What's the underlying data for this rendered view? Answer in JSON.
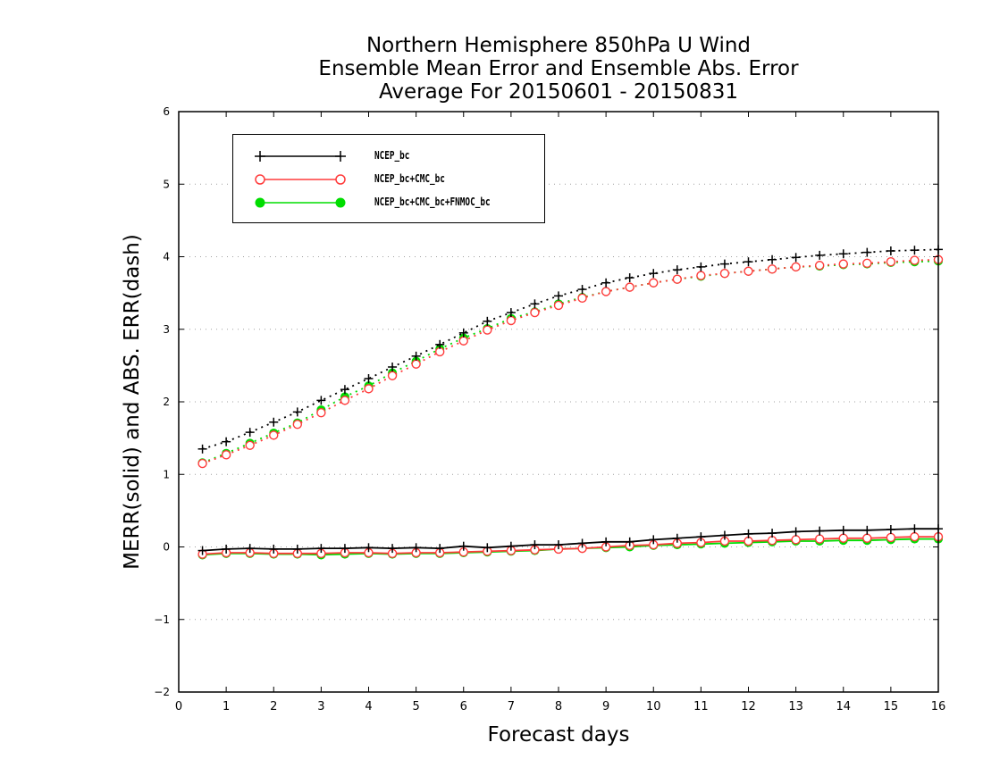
{
  "titles": [
    "Northern Hemisphere 850hPa U Wind",
    "Ensemble Mean Error and Ensemble Abs. Error",
    "Average For 20150601 - 20150831"
  ],
  "chart_data": {
    "type": "line",
    "title": "Northern Hemisphere 850hPa U Wind / Ensemble Mean Error and Ensemble Abs. Error / Average For 20150601 - 20150831",
    "xlabel": "Forecast days",
    "ylabel": "MERR(solid) and ABS. ERR(dash)",
    "xlim": [
      0,
      16
    ],
    "ylim": [
      -2,
      6
    ],
    "xticks": [
      0,
      1,
      2,
      3,
      4,
      5,
      6,
      7,
      8,
      9,
      10,
      11,
      12,
      13,
      14,
      15,
      16
    ],
    "yticks": [
      -2,
      -1,
      0,
      1,
      2,
      3,
      4,
      5,
      6
    ],
    "grid": "horizontal dotted",
    "legend_position": "top-left",
    "x": [
      0.5,
      1,
      1.5,
      2,
      2.5,
      3,
      3.5,
      4,
      4.5,
      5,
      5.5,
      6,
      6.5,
      7,
      7.5,
      8,
      8.5,
      9,
      9.5,
      10,
      10.5,
      11,
      11.5,
      12,
      12.5,
      13,
      13.5,
      14,
      14.5,
      15,
      15.5,
      16
    ],
    "series": [
      {
        "name": "NCEP_bc",
        "color": "#000000",
        "marker": "plus",
        "abs_err": [
          1.35,
          1.45,
          1.58,
          1.72,
          1.86,
          2.02,
          2.17,
          2.32,
          2.48,
          2.63,
          2.79,
          2.95,
          3.11,
          3.23,
          3.35,
          3.46,
          3.55,
          3.64,
          3.71,
          3.77,
          3.82,
          3.86,
          3.9,
          3.93,
          3.96,
          3.99,
          4.02,
          4.04,
          4.06,
          4.08,
          4.09,
          4.1
        ],
        "merr": [
          -0.05,
          -0.03,
          -0.02,
          -0.03,
          -0.03,
          -0.02,
          -0.02,
          -0.01,
          -0.02,
          -0.01,
          -0.02,
          0.01,
          -0.01,
          0.01,
          0.03,
          0.03,
          0.05,
          0.07,
          0.07,
          0.1,
          0.12,
          0.14,
          0.16,
          0.18,
          0.19,
          0.21,
          0.22,
          0.23,
          0.23,
          0.24,
          0.25,
          0.25
        ]
      },
      {
        "name": "NCEP_bc+CMC_bc",
        "color": "#ff3b3b",
        "marker": "open-circle",
        "abs_err": [
          1.15,
          1.27,
          1.4,
          1.54,
          1.69,
          1.85,
          2.02,
          2.18,
          2.36,
          2.52,
          2.69,
          2.84,
          2.99,
          3.12,
          3.23,
          3.33,
          3.43,
          3.52,
          3.58,
          3.64,
          3.69,
          3.74,
          3.77,
          3.8,
          3.83,
          3.86,
          3.88,
          3.9,
          3.91,
          3.93,
          3.95,
          3.96
        ],
        "merr": [
          -0.1,
          -0.08,
          -0.08,
          -0.09,
          -0.09,
          -0.09,
          -0.08,
          -0.08,
          -0.09,
          -0.08,
          -0.08,
          -0.07,
          -0.06,
          -0.05,
          -0.04,
          -0.03,
          -0.02,
          0.0,
          0.02,
          0.03,
          0.05,
          0.06,
          0.08,
          0.08,
          0.09,
          0.1,
          0.11,
          0.12,
          0.12,
          0.13,
          0.14,
          0.14
        ]
      },
      {
        "name": "NCEP_bc+CMC_bc+FNMOC_bc",
        "color": "#00dd00",
        "marker": "filled-circle",
        "abs_err": [
          1.16,
          1.29,
          1.43,
          1.57,
          1.71,
          1.89,
          2.07,
          2.22,
          2.4,
          2.56,
          2.73,
          2.88,
          3.01,
          3.15,
          3.24,
          3.35,
          3.44,
          3.52,
          3.58,
          3.64,
          3.69,
          3.73,
          3.77,
          3.8,
          3.83,
          3.86,
          3.87,
          3.89,
          3.9,
          3.92,
          3.93,
          3.94
        ],
        "merr": [
          -0.11,
          -0.09,
          -0.09,
          -0.1,
          -0.1,
          -0.11,
          -0.1,
          -0.09,
          -0.1,
          -0.09,
          -0.09,
          -0.08,
          -0.07,
          -0.06,
          -0.05,
          -0.03,
          -0.02,
          -0.01,
          0.0,
          0.02,
          0.03,
          0.04,
          0.05,
          0.06,
          0.07,
          0.08,
          0.08,
          0.09,
          0.09,
          0.1,
          0.11,
          0.11
        ]
      }
    ]
  }
}
